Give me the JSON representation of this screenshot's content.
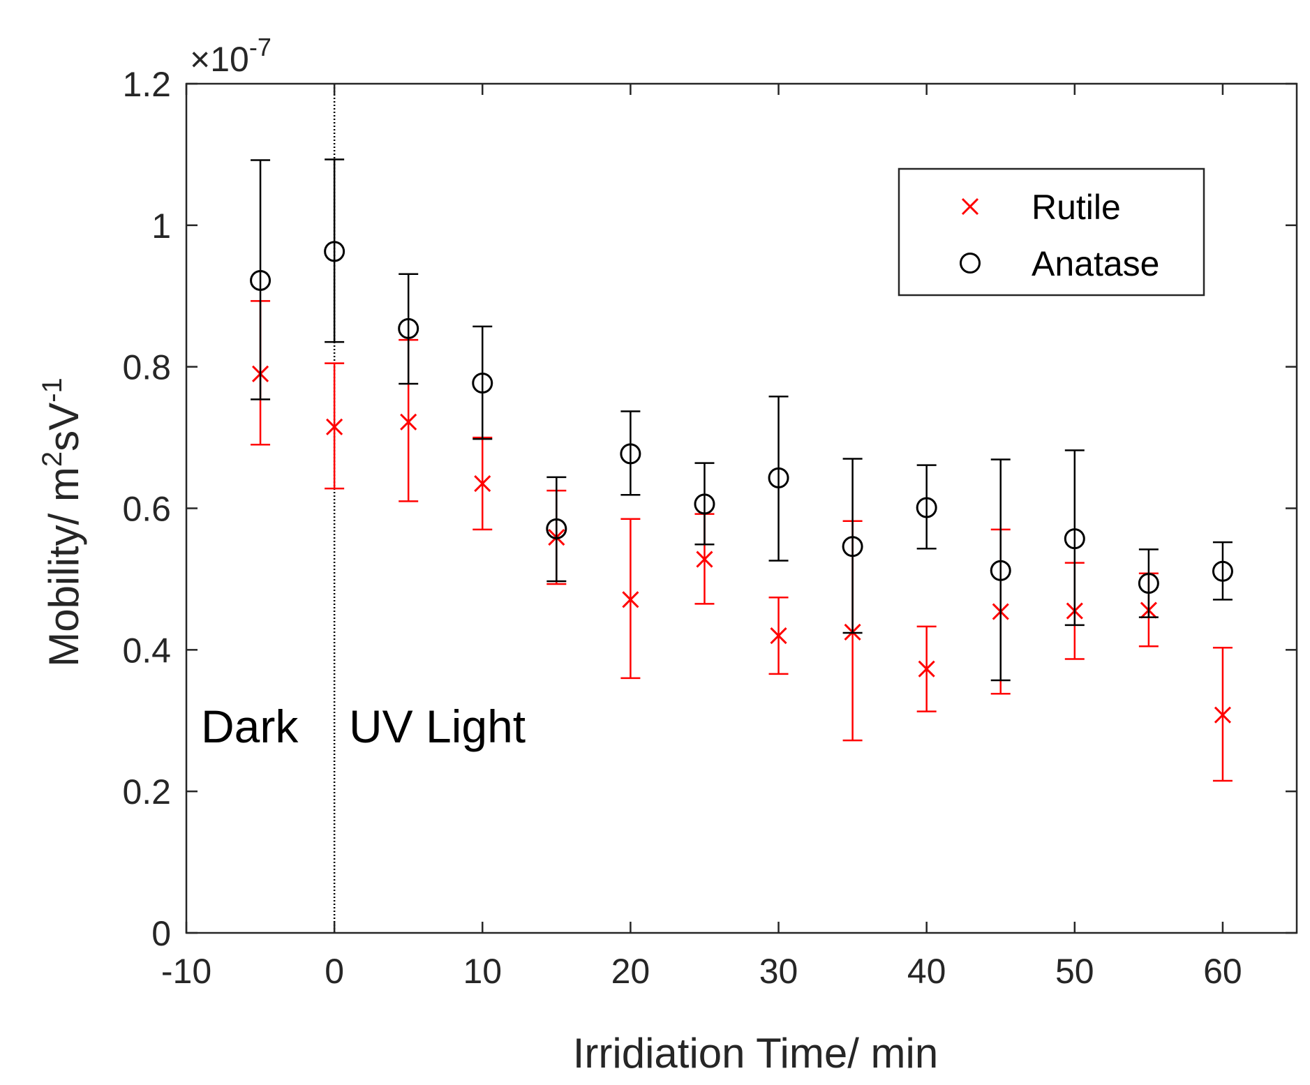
{
  "chart_data": {
    "type": "scatter",
    "title": "",
    "xlabel": "Irridiation Time/ min",
    "ylabel": {
      "base": "Mobility/ m",
      "sup1": "2",
      "mid": "sV",
      "sup2": "-1"
    },
    "exponent": {
      "prefix": "×10",
      "power": "-7"
    },
    "xlim": [
      -10,
      65
    ],
    "ylim": [
      0,
      1.2
    ],
    "xticks": [
      -10,
      0,
      10,
      20,
      30,
      40,
      50,
      60
    ],
    "xtick_labels": [
      "-10",
      "0",
      "10",
      "20",
      "30",
      "40",
      "50",
      "60"
    ],
    "yticks": [
      0,
      0.2,
      0.4,
      0.6,
      0.8,
      1,
      1.2
    ],
    "ytick_labels": [
      "0",
      "0.2",
      "0.4",
      "0.6",
      "0.8",
      "1",
      "1.2"
    ],
    "grid": false,
    "legend_position": "top-right",
    "vertical_line": {
      "x": 0,
      "style": "dotted"
    },
    "annotations": [
      "Dark",
      "UV Light"
    ],
    "series": [
      {
        "name": "Rutile",
        "marker": "x",
        "color": "#ff0000",
        "x": [
          -5,
          0,
          5,
          10,
          15,
          20,
          25,
          30,
          35,
          40,
          45,
          50,
          55,
          60
        ],
        "y": [
          0.79,
          0.715,
          0.722,
          0.635,
          0.559,
          0.471,
          0.528,
          0.42,
          0.425,
          0.373,
          0.454,
          0.455,
          0.456,
          0.308
        ],
        "err_low": [
          0.69,
          0.628,
          0.61,
          0.57,
          0.493,
          0.36,
          0.465,
          0.366,
          0.272,
          0.313,
          0.338,
          0.387,
          0.405,
          0.215
        ],
        "err_high": [
          0.893,
          0.805,
          0.838,
          0.7,
          0.625,
          0.585,
          0.592,
          0.474,
          0.582,
          0.433,
          0.57,
          0.523,
          0.508,
          0.403
        ]
      },
      {
        "name": "Anatase",
        "marker": "o",
        "color": "#000000",
        "x": [
          -5,
          0,
          5,
          10,
          15,
          20,
          25,
          30,
          35,
          40,
          45,
          50,
          55,
          60
        ],
        "y": [
          0.922,
          0.963,
          0.854,
          0.777,
          0.571,
          0.677,
          0.606,
          0.643,
          0.546,
          0.601,
          0.512,
          0.557,
          0.494,
          0.511
        ],
        "err_low": [
          0.754,
          0.835,
          0.776,
          0.698,
          0.497,
          0.619,
          0.549,
          0.526,
          0.424,
          0.543,
          0.357,
          0.435,
          0.446,
          0.471
        ],
        "err_high": [
          1.092,
          1.093,
          0.931,
          0.857,
          0.644,
          0.737,
          0.664,
          0.758,
          0.67,
          0.661,
          0.669,
          0.682,
          0.542,
          0.552
        ]
      }
    ]
  }
}
